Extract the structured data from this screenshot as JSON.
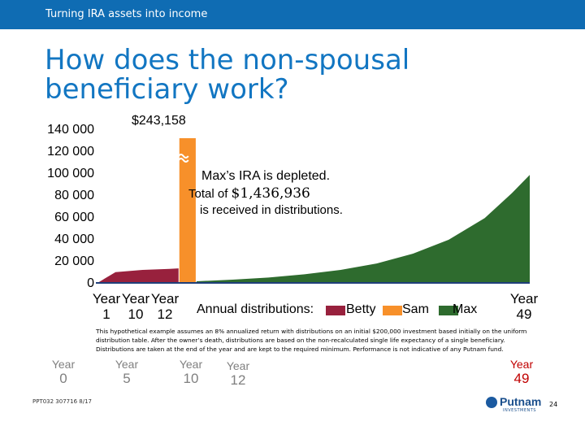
{
  "header": {
    "section_label": "Turning IRA assets into income"
  },
  "slide_title": "How does the non-spousal beneficiary work?",
  "chart_data": {
    "type": "area",
    "ylim": [
      0,
      140000
    ],
    "y_ticks": [
      "140 000",
      "120 000",
      "100 000",
      "80 000",
      "60 000",
      "40 000",
      "20 000",
      "0"
    ],
    "y_tick_values": [
      140000,
      120000,
      100000,
      80000,
      60000,
      40000,
      20000,
      0
    ],
    "x_range": [
      1,
      49
    ],
    "series": [
      {
        "name": "Betty",
        "color": "#98213d",
        "x": [
          1,
          3,
          6,
          9,
          10
        ],
        "values": [
          0,
          10000,
          12000,
          13000,
          13500
        ]
      },
      {
        "name": "Sam",
        "color": "#f7902a",
        "x": [
          10,
          12
        ],
        "values": [
          134000,
          134000
        ],
        "break_value": "$243,158"
      },
      {
        "name": "Max",
        "color": "#2e6b2e",
        "x": [
          12,
          16,
          20,
          24,
          28,
          32,
          36,
          40,
          44,
          47,
          49
        ],
        "values": [
          1500,
          3000,
          5000,
          8000,
          12000,
          18000,
          27000,
          40000,
          60000,
          83000,
          100000
        ]
      }
    ],
    "break_label": "$243,158",
    "annotation": {
      "line1": "Max’s IRA is depleted.",
      "line2_prefix": "Total of ",
      "line2_amount": "$1,436,936",
      "line3": "is received in distributions."
    },
    "x_labels": {
      "word": "Year",
      "first": "1",
      "second": "10",
      "third": "12",
      "last": "49"
    },
    "legend_title": "Annual distributions:"
  },
  "disclaimer": "This hypothetical example assumes an 8% annualized return with distributions on an initial $200,000 investment based initially on the uniform distribution table. After the owner’s death, distributions are based on the non-recalculated single life expectancy of a single beneficiary. Distributions are taken at the end of the year and are kept to the required minimum. Performance is not indicative of any Putnam fund.",
  "year_tabs": [
    {
      "word": "Year",
      "num": "0"
    },
    {
      "word": "Year",
      "num": "5"
    },
    {
      "word": "Year",
      "num": "10"
    },
    {
      "word": "Year",
      "num": "12"
    },
    {
      "word": "Year",
      "num": "49"
    }
  ],
  "footer": {
    "code": "PPT032 307716 8/17",
    "brand": "Putnam",
    "brand_sub": "INVESTMENTS",
    "page_number": "24"
  },
  "colors": {
    "header_bar": "#0f6cb3",
    "title": "#1276c2",
    "betty": "#98213d",
    "sam": "#f7902a",
    "max": "#2e6b2e",
    "highlight": "#c00000"
  }
}
